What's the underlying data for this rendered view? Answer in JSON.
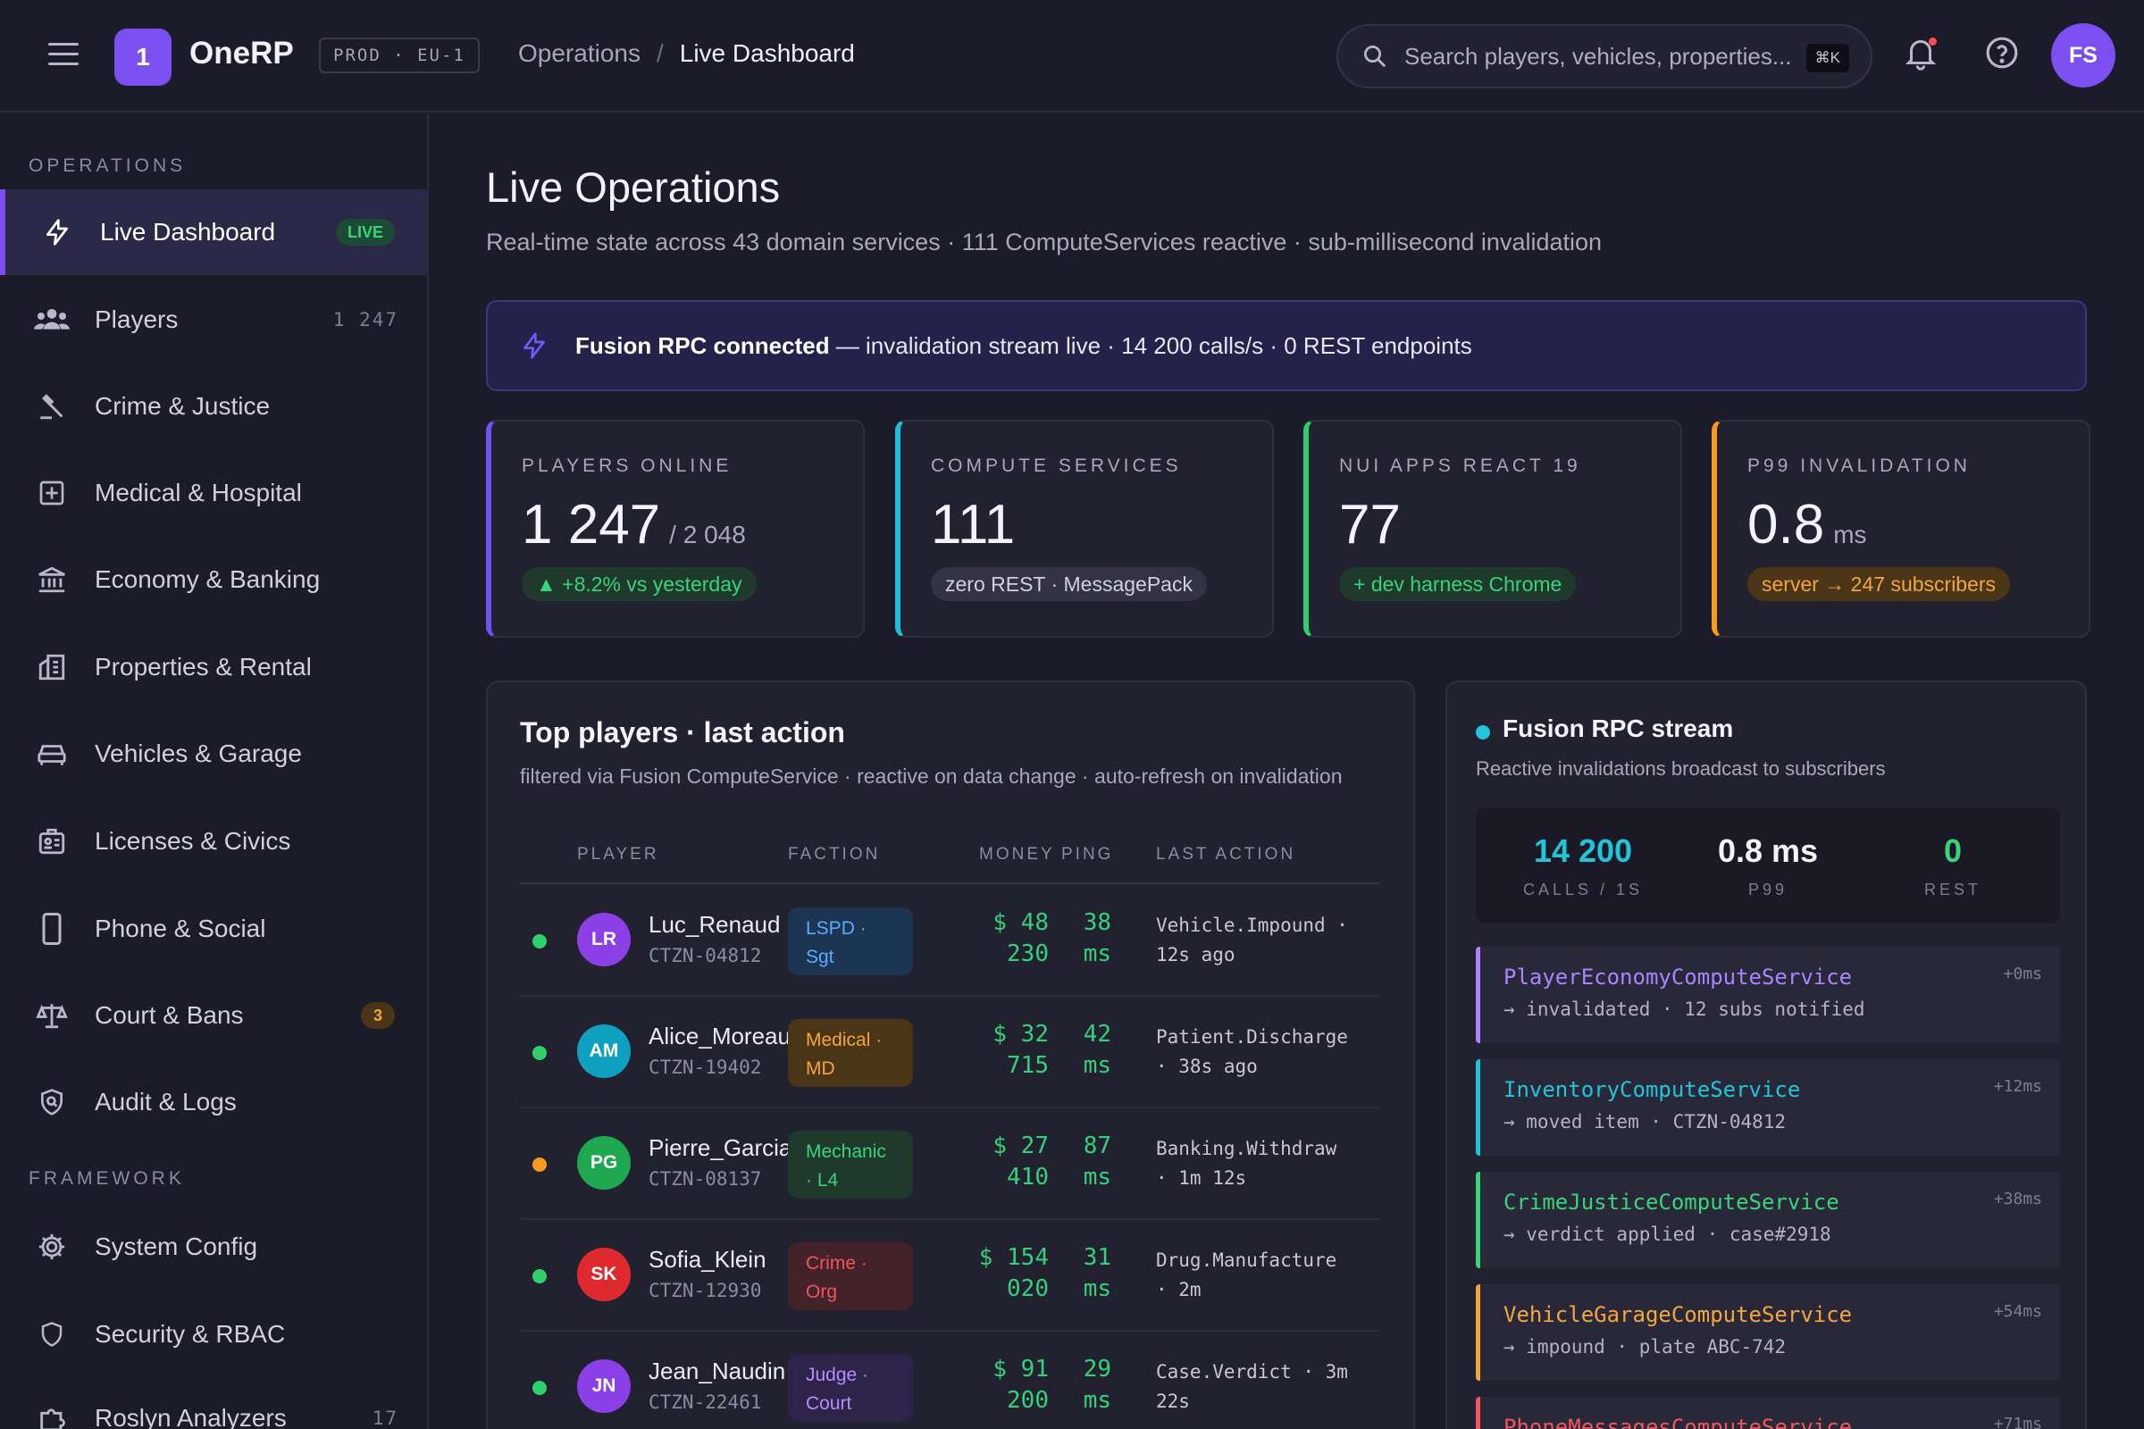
{
  "header": {
    "logo_initial": "1",
    "app_name": "OneRP",
    "env": "PROD · EU-1",
    "breadcrumb": [
      "Operations",
      "/",
      "Live Dashboard"
    ],
    "search_placeholder": "Search players, vehicles, properties...",
    "search_shortcut": "⌘K",
    "user_initials": "FS",
    "has_unread_notifications": true
  },
  "sidebar": {
    "sections": [
      {
        "title": "OPERATIONS",
        "items": [
          {
            "label": "Live Dashboard",
            "icon": "bolt-icon",
            "badge": "LIVE",
            "active": true
          },
          {
            "label": "Players",
            "icon": "users-icon",
            "count": "1 247"
          },
          {
            "label": "Crime & Justice",
            "icon": "gavel-icon"
          },
          {
            "label": "Medical & Hospital",
            "icon": "medical-cross-icon"
          },
          {
            "label": "Economy & Banking",
            "icon": "bank-icon"
          },
          {
            "label": "Properties & Rental",
            "icon": "buildings-icon"
          },
          {
            "label": "Vehicles & Garage",
            "icon": "car-icon"
          },
          {
            "label": "Licenses & Civics",
            "icon": "id-card-icon"
          },
          {
            "label": "Phone & Social",
            "icon": "phone-icon"
          },
          {
            "label": "Court & Bans",
            "icon": "scales-icon",
            "badge": "3"
          },
          {
            "label": "Audit & Logs",
            "icon": "shield-search-icon"
          }
        ]
      },
      {
        "title": "FRAMEWORK",
        "items": [
          {
            "label": "System Config",
            "icon": "gear-icon"
          },
          {
            "label": "Security & RBAC",
            "icon": "shield-icon"
          },
          {
            "label": "Roslyn Analyzers",
            "icon": "puzzle-icon",
            "count": "17"
          }
        ]
      }
    ]
  },
  "page": {
    "title": "Live Operations",
    "subtitle": "Real-time state across 43 domain services · 111 ComputeServices reactive · sub-millisecond invalidation"
  },
  "banner": {
    "strong": "Fusion RPC connected",
    "rest": " — invalidation stream live · 14 200 calls/s · 0 REST endpoints"
  },
  "kpis": [
    {
      "label": "PLAYERS ONLINE",
      "value": "1 247",
      "suffix": "/ 2 048",
      "pill": "▲ +8.2% vs yesterday",
      "accent": "#6d54f0",
      "pill_bg": "#1f3a2c",
      "pill_fg": "#39d47a"
    },
    {
      "label": "COMPUTE SERVICES",
      "value": "111",
      "suffix": "",
      "pill": "zero REST · MessagePack",
      "accent": "#1fc0d6",
      "pill_bg": "#343345",
      "pill_fg": "#d2cfe2"
    },
    {
      "label": "NUI APPS REACT 19",
      "value": "77",
      "suffix": "",
      "pill": "+ dev harness Chrome",
      "accent": "#2fcf6c",
      "pill_bg": "#1f3a2c",
      "pill_fg": "#39d47a"
    },
    {
      "label": "P99 INVALIDATION",
      "value": "0.8",
      "suffix": "ms",
      "pill": "server → 247 subscribers",
      "accent": "#f59b22",
      "pill_bg": "#4a3516",
      "pill_fg": "#f3a640"
    }
  ],
  "players": {
    "title": "Top players · last action",
    "subtitle": "filtered via Fusion ComputeService · reactive on data change · auto-refresh on invalidation",
    "columns": [
      "PLAYER",
      "FACTION",
      "MONEY",
      "PING",
      "LAST ACTION"
    ],
    "rows": [
      {
        "initials": "LR",
        "name": "Luc_Renaud",
        "id": "CTZN-04812",
        "faction_1": "LSPD ·",
        "faction_2": "Sgt",
        "money_1": "$ 48",
        "money_2": "230",
        "ping_1": "38",
        "ping_2": "ms",
        "action_1": "Vehicle.Impound ·",
        "action_2": "12s ago",
        "status_color": "#2fcf6c",
        "avatar_color": "#8b3fe6",
        "faction_bg": "#1c3553",
        "faction_fg": "#5fa9ff"
      },
      {
        "initials": "AM",
        "name": "Alice_Moreau",
        "id": "CTZN-19402",
        "faction_1": "Medical ·",
        "faction_2": "MD",
        "money_1": "$ 32",
        "money_2": "715",
        "ping_1": "42",
        "ping_2": "ms",
        "action_1": "Patient.Discharge",
        "action_2": "· 38s ago",
        "status_color": "#2fcf6c",
        "avatar_color": "#0f9fc0",
        "faction_bg": "#4a3516",
        "faction_fg": "#f3a640"
      },
      {
        "initials": "PG",
        "name": "Pierre_Garcia",
        "id": "CTZN-08137",
        "faction_1": "Mechanic",
        "faction_2": "· L4",
        "money_1": "$ 27",
        "money_2": "410",
        "ping_1": "87",
        "ping_2": "ms",
        "action_1": "Banking.Withdraw",
        "action_2": "· 1m 12s",
        "status_color": "#f59b22",
        "avatar_color": "#1ea84f",
        "faction_bg": "#1f3a2c",
        "faction_fg": "#39d47a"
      },
      {
        "initials": "SK",
        "name": "Sofia_Klein",
        "id": "CTZN-12930",
        "faction_1": "Crime ·",
        "faction_2": "Org",
        "money_1": "$ 154",
        "money_2": "020",
        "ping_1": "31",
        "ping_2": "ms",
        "action_1": "Drug.Manufacture",
        "action_2": "· 2m",
        "status_color": "#2fcf6c",
        "avatar_color": "#e0282f",
        "faction_bg": "#43222a",
        "faction_fg": "#f0565c"
      },
      {
        "initials": "JN",
        "name": "Jean_Naudin",
        "id": "CTZN-22461",
        "faction_1": "Judge ·",
        "faction_2": "Court",
        "money_1": "$ 91",
        "money_2": "200",
        "ping_1": "29",
        "ping_2": "ms",
        "action_1": "Case.Verdict · 3m",
        "action_2": "22s",
        "status_color": "#2fcf6c",
        "avatar_color": "#8b3fe6",
        "faction_bg": "#2e2348",
        "faction_fg": "#b68cff"
      }
    ]
  },
  "stream": {
    "title": "Fusion RPC stream",
    "subtitle": "Reactive invalidations broadcast to subscribers",
    "metrics": [
      {
        "value": "14 200",
        "label": "CALLS / 1S",
        "color": "#22c5d8"
      },
      {
        "value": "0.8 ms",
        "label": "P99",
        "color": "#f4f2fc"
      },
      {
        "value": "0",
        "label": "REST",
        "color": "#39d47a"
      }
    ],
    "events": [
      {
        "name": "PlayerEconomyComputeService",
        "detail": "→ invalidated · 12 subs notified",
        "time": "+0ms",
        "color": "#a884ff"
      },
      {
        "name": "InventoryComputeService",
        "detail": "→ moved item · CTZN-04812",
        "time": "+12ms",
        "color": "#22c5d8"
      },
      {
        "name": "CrimeJusticeComputeService",
        "detail": "→ verdict applied · case#2918",
        "time": "+38ms",
        "color": "#39d47a"
      },
      {
        "name": "VehicleGarageComputeService",
        "detail": "→ impound · plate ABC-742",
        "time": "+54ms",
        "color": "#f3a640"
      },
      {
        "name": "PhoneMessagesComputeService",
        "detail": "",
        "time": "+71ms",
        "color": "#f0565c"
      }
    ]
  }
}
